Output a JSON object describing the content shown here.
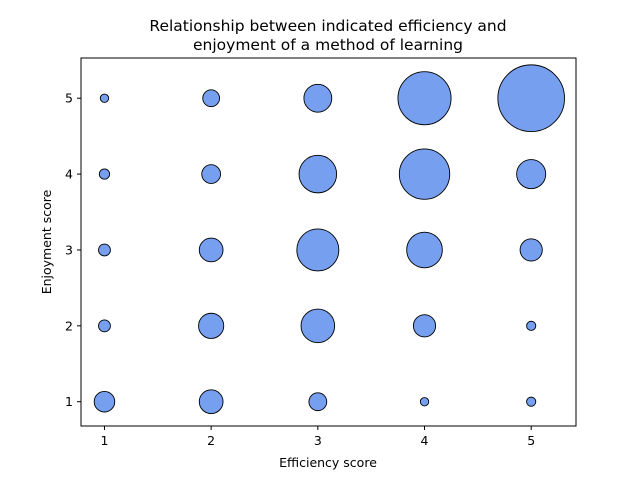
{
  "chart_data": {
    "type": "scatter",
    "title_lines": [
      "Relationship between indicated efficiency and",
      "enjoyment of a method of learning"
    ],
    "xlabel": "Efficiency score",
    "ylabel": "Enjoyment score",
    "xlim": [
      0.78,
      5.42
    ],
    "ylim": [
      0.68,
      5.53
    ],
    "xticks": [
      1,
      2,
      3,
      4,
      5
    ],
    "yticks": [
      1,
      2,
      3,
      4,
      5
    ],
    "grid": false,
    "legend": "none",
    "marker_color": "#779ff0",
    "marker_edge_color": "#000000",
    "points": [
      {
        "x": 1,
        "y": 1,
        "size": 6
      },
      {
        "x": 1,
        "y": 2,
        "size": 2
      },
      {
        "x": 1,
        "y": 3,
        "size": 2
      },
      {
        "x": 1,
        "y": 4,
        "size": 1.5
      },
      {
        "x": 1,
        "y": 5,
        "size": 1
      },
      {
        "x": 2,
        "y": 1,
        "size": 8
      },
      {
        "x": 2,
        "y": 2,
        "size": 9
      },
      {
        "x": 2,
        "y": 3,
        "size": 8
      },
      {
        "x": 2,
        "y": 4,
        "size": 5
      },
      {
        "x": 2,
        "y": 5,
        "size": 4
      },
      {
        "x": 3,
        "y": 1,
        "size": 4.5
      },
      {
        "x": 3,
        "y": 2,
        "size": 16
      },
      {
        "x": 3,
        "y": 3,
        "size": 25
      },
      {
        "x": 3,
        "y": 4,
        "size": 20
      },
      {
        "x": 3,
        "y": 5,
        "size": 11
      },
      {
        "x": 4,
        "y": 1,
        "size": 1
      },
      {
        "x": 4,
        "y": 2,
        "size": 7
      },
      {
        "x": 4,
        "y": 3,
        "size": 18
      },
      {
        "x": 4,
        "y": 4,
        "size": 36
      },
      {
        "x": 4,
        "y": 5,
        "size": 40
      },
      {
        "x": 5,
        "y": 1,
        "size": 1.2
      },
      {
        "x": 5,
        "y": 2,
        "size": 1.2
      },
      {
        "x": 5,
        "y": 3,
        "size": 7
      },
      {
        "x": 5,
        "y": 4,
        "size": 12
      },
      {
        "x": 5,
        "y": 5,
        "size": 63
      }
    ]
  }
}
